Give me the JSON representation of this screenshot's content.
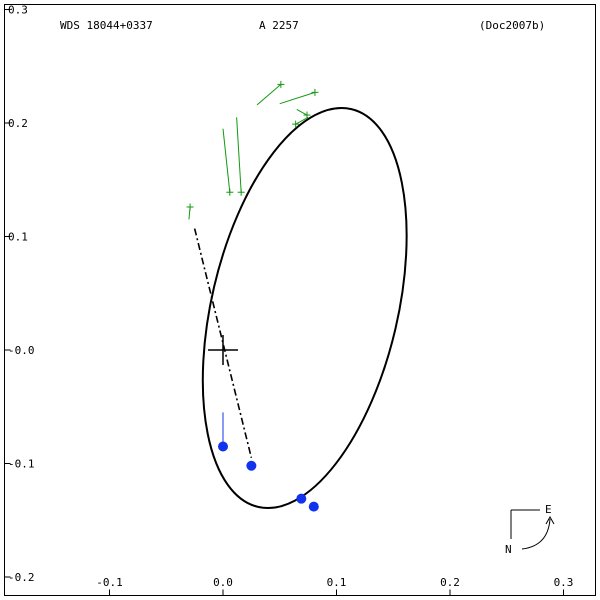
{
  "header": {
    "system": "WDS 18044+0337",
    "discoverer": "A  2257",
    "reference": "(Doc2007b)"
  },
  "compass": {
    "north": "N",
    "east": "E"
  },
  "chart_data": {
    "type": "scatter",
    "title": "",
    "xlabel": "",
    "ylabel": "",
    "xlim": [
      -0.2,
      0.33
    ],
    "ylim": [
      -0.2,
      0.3
    ],
    "grid": false,
    "x_ticks": [
      -0.1,
      0.0,
      0.1,
      0.2,
      0.3
    ],
    "x_tick_labels": [
      "-0.1",
      "0.0",
      "0.1",
      "0.2",
      "0.3"
    ],
    "y_ticks": [
      -0.2,
      -0.1,
      0.0,
      0.1,
      0.2,
      0.3
    ],
    "y_tick_labels": [
      "-0.2",
      "-0.1",
      "-0.0",
      "0.1",
      "0.2",
      "0.3"
    ],
    "primary": [
      0.0,
      0.0
    ],
    "orbit_ellipse": {
      "center": [
        0.072,
        0.037
      ],
      "semi_major": 0.18,
      "semi_minor": 0.082,
      "angle_deg": 76.8
    },
    "line_of_nodes": [
      [
        -0.025,
        0.107
      ],
      [
        0.025,
        -0.095
      ]
    ],
    "series": [
      {
        "marker": "plus",
        "color": "#119911",
        "points": [
          {
            "obs": [
              -0.029,
              0.126
            ],
            "calc": [
              -0.03,
              0.115
            ]
          },
          {
            "obs": [
              0.006,
              0.139
            ],
            "calc": [
              0.0,
              0.195
            ]
          },
          {
            "obs": [
              0.016,
              0.139
            ],
            "calc": [
              0.012,
              0.205
            ]
          },
          {
            "obs": [
              0.051,
              0.234
            ],
            "calc": [
              0.03,
              0.216
            ]
          },
          {
            "obs": [
              0.081,
              0.227
            ],
            "calc": [
              0.05,
              0.217
            ]
          },
          {
            "obs": [
              0.064,
              0.199
            ],
            "calc": [
              0.075,
              0.205
            ]
          },
          {
            "obs": [
              0.074,
              0.207
            ],
            "calc": [
              0.065,
              0.212
            ]
          }
        ]
      },
      {
        "marker": "filled-circle",
        "color": "#1133ee",
        "points": [
          {
            "obs": [
              0.0,
              -0.085
            ],
            "calc": [
              0.0,
              -0.055
            ]
          },
          {
            "obs": [
              0.025,
              -0.102
            ],
            "calc": [
              0.025,
              -0.098
            ]
          },
          {
            "obs": [
              0.069,
              -0.131
            ],
            "calc": [
              0.067,
              -0.129
            ]
          },
          {
            "obs": [
              0.08,
              -0.138
            ],
            "calc": [
              0.078,
              -0.136
            ]
          }
        ]
      }
    ]
  }
}
